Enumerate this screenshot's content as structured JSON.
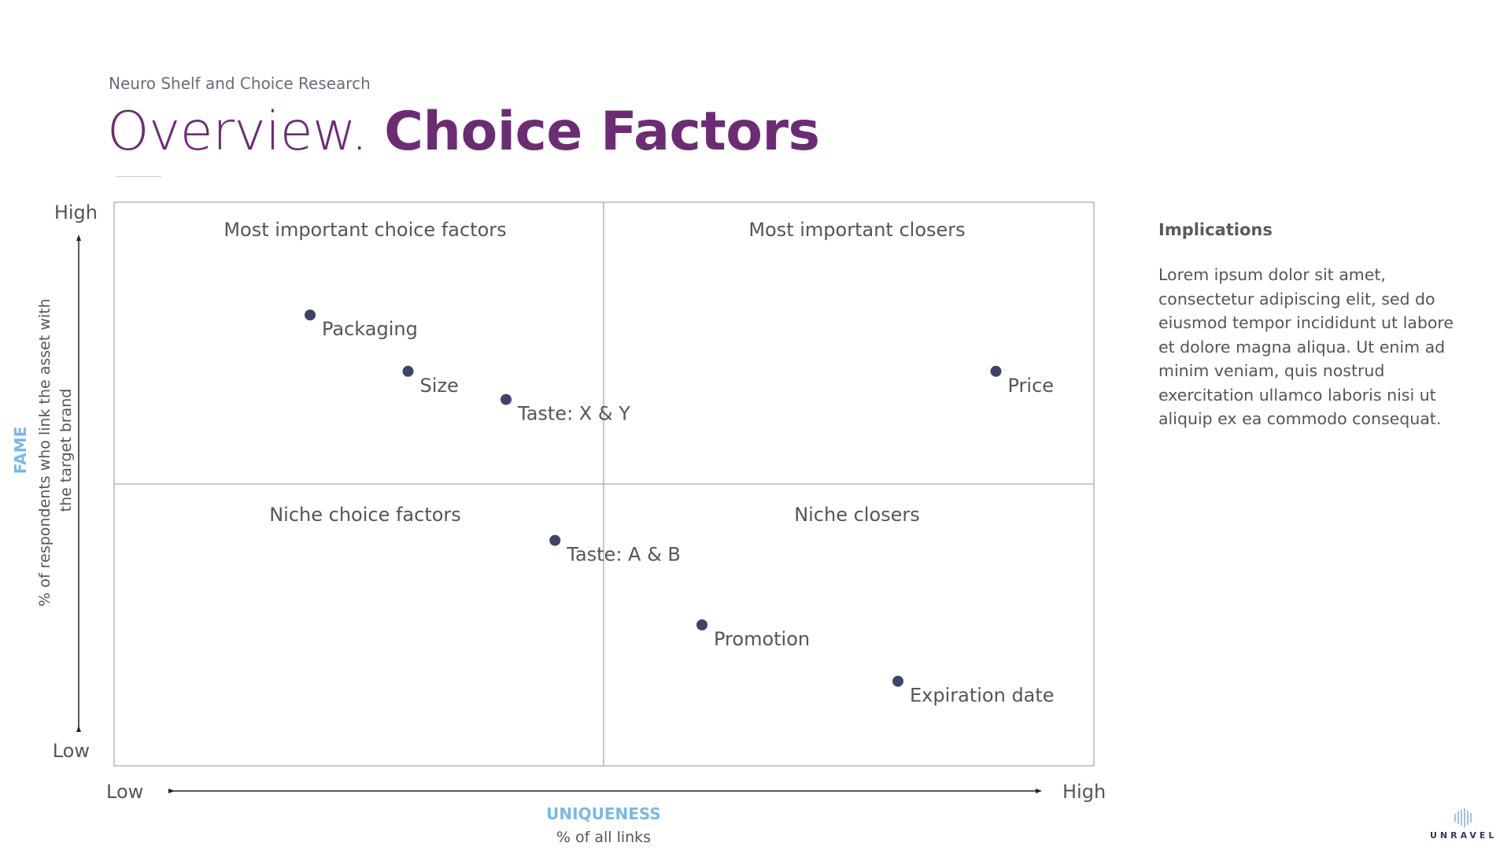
{
  "header": {
    "subtitle": "Neuro Shelf and Choice Research",
    "title_light": "Overview.",
    "title_bold": "Choice Factors"
  },
  "implications": {
    "heading": "Implications",
    "body": "Lorem ipsum dolor sit amet, consectetur adipiscing elit, sed do eiusmod tempor incididunt ut labore et dolore magna aliqua. Ut enim ad minim veniam, quis nostrud exercitation ullamco laboris nisi ut aliquip ex ea commodo consequat."
  },
  "logo": {
    "text": "UNRAVEL"
  },
  "chart_data": {
    "type": "scatter",
    "xlabel": "UNIQUENESS",
    "xlabel_sub": "% of all links",
    "ylabel": "FAME",
    "ylabel_sub": "% of respondents who link the asset with the target brand",
    "x_low_label": "Low",
    "x_high_label": "High",
    "y_low_label": "Low",
    "y_high_label": "High",
    "xlim": [
      0,
      100
    ],
    "ylim": [
      0,
      100
    ],
    "quadrants": {
      "top_left": "Most important choice factors",
      "top_right": "Most important closers",
      "bottom_left": "Niche choice factors",
      "bottom_right": "Niche closers"
    },
    "points": [
      {
        "label": "Packaging",
        "x": 20,
        "y": 80
      },
      {
        "label": "Size",
        "x": 30,
        "y": 70
      },
      {
        "label": "Taste: X & Y",
        "x": 40,
        "y": 65
      },
      {
        "label": "Price",
        "x": 90,
        "y": 70
      },
      {
        "label": "Taste: A & B",
        "x": 45,
        "y": 40
      },
      {
        "label": "Promotion",
        "x": 60,
        "y": 25
      },
      {
        "label": "Expiration date",
        "x": 80,
        "y": 15
      }
    ],
    "colors": {
      "point": "#3d4466",
      "axis_title": "#7ab8e8",
      "grid": "#b5b5b5"
    }
  }
}
